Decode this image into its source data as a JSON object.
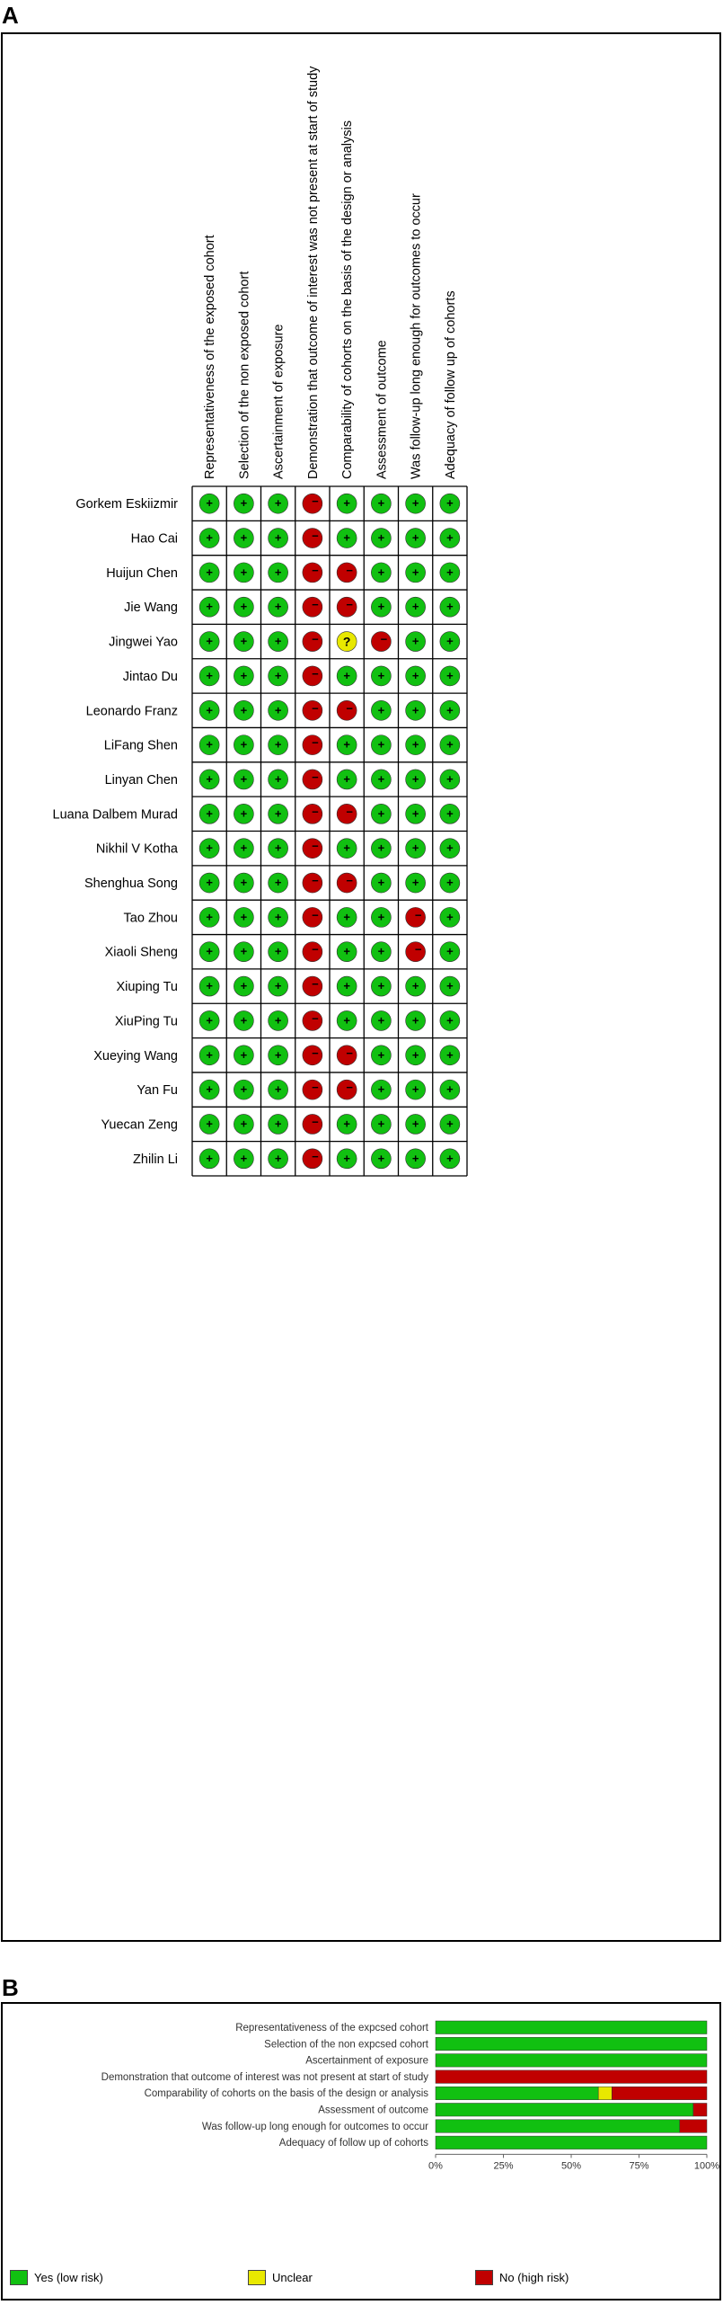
{
  "panel_a_label": "A",
  "panel_b_label": "B",
  "colors": {
    "yes": "#11c011",
    "no": "#c00000",
    "unclear": "#e8e800"
  },
  "symbols": {
    "yes": "+",
    "no": "−",
    "unclear": "?"
  },
  "chart_data": [
    {
      "type": "table",
      "columns": [
        "Representativeness of the exposed cohort",
        "Selection of the non exposed cohort",
        "Ascertainment of exposure",
        "Demonstration that outcome of interest was not present at start of study",
        "Comparability of cohorts on the basis of the design or analysis",
        "Assessment of outcome",
        "Was follow-up long enough for outcomes to occur",
        "Adequacy of follow up of cohorts"
      ],
      "rows": [
        {
          "study": "Gorkem Eskiizmir",
          "ratings": [
            "yes",
            "yes",
            "yes",
            "no",
            "yes",
            "yes",
            "yes",
            "yes"
          ]
        },
        {
          "study": "Hao Cai",
          "ratings": [
            "yes",
            "yes",
            "yes",
            "no",
            "yes",
            "yes",
            "yes",
            "yes"
          ]
        },
        {
          "study": "Huijun Chen",
          "ratings": [
            "yes",
            "yes",
            "yes",
            "no",
            "no",
            "yes",
            "yes",
            "yes"
          ]
        },
        {
          "study": "Jie Wang",
          "ratings": [
            "yes",
            "yes",
            "yes",
            "no",
            "no",
            "yes",
            "yes",
            "yes"
          ]
        },
        {
          "study": "Jingwei Yao",
          "ratings": [
            "yes",
            "yes",
            "yes",
            "no",
            "unclear",
            "no",
            "yes",
            "yes"
          ]
        },
        {
          "study": "Jintao Du",
          "ratings": [
            "yes",
            "yes",
            "yes",
            "no",
            "yes",
            "yes",
            "yes",
            "yes"
          ]
        },
        {
          "study": "Leonardo Franz",
          "ratings": [
            "yes",
            "yes",
            "yes",
            "no",
            "no",
            "yes",
            "yes",
            "yes"
          ]
        },
        {
          "study": "LiFang Shen",
          "ratings": [
            "yes",
            "yes",
            "yes",
            "no",
            "yes",
            "yes",
            "yes",
            "yes"
          ]
        },
        {
          "study": "Linyan Chen",
          "ratings": [
            "yes",
            "yes",
            "yes",
            "no",
            "yes",
            "yes",
            "yes",
            "yes"
          ]
        },
        {
          "study": "Luana Dalbem Murad",
          "ratings": [
            "yes",
            "yes",
            "yes",
            "no",
            "no",
            "yes",
            "yes",
            "yes"
          ]
        },
        {
          "study": "Nikhil V Kotha",
          "ratings": [
            "yes",
            "yes",
            "yes",
            "no",
            "yes",
            "yes",
            "yes",
            "yes"
          ]
        },
        {
          "study": "Shenghua Song",
          "ratings": [
            "yes",
            "yes",
            "yes",
            "no",
            "no",
            "yes",
            "yes",
            "yes"
          ]
        },
        {
          "study": "Tao Zhou",
          "ratings": [
            "yes",
            "yes",
            "yes",
            "no",
            "yes",
            "yes",
            "no",
            "yes"
          ]
        },
        {
          "study": "Xiaoli Sheng",
          "ratings": [
            "yes",
            "yes",
            "yes",
            "no",
            "yes",
            "yes",
            "no",
            "yes"
          ]
        },
        {
          "study": "Xiuping Tu",
          "ratings": [
            "yes",
            "yes",
            "yes",
            "no",
            "yes",
            "yes",
            "yes",
            "yes"
          ]
        },
        {
          "study": "XiuPing Tu",
          "ratings": [
            "yes",
            "yes",
            "yes",
            "no",
            "yes",
            "yes",
            "yes",
            "yes"
          ]
        },
        {
          "study": "Xueying Wang",
          "ratings": [
            "yes",
            "yes",
            "yes",
            "no",
            "no",
            "yes",
            "yes",
            "yes"
          ]
        },
        {
          "study": "Yan Fu",
          "ratings": [
            "yes",
            "yes",
            "yes",
            "no",
            "no",
            "yes",
            "yes",
            "yes"
          ]
        },
        {
          "study": "Yuecan Zeng",
          "ratings": [
            "yes",
            "yes",
            "yes",
            "no",
            "yes",
            "yes",
            "yes",
            "yes"
          ]
        },
        {
          "study": "Zhilin Li",
          "ratings": [
            "yes",
            "yes",
            "yes",
            "no",
            "yes",
            "yes",
            "yes",
            "yes"
          ]
        }
      ]
    },
    {
      "type": "bar",
      "orientation": "horizontal",
      "stacked": true,
      "categories": [
        "Representativeness of the expcsed cohort",
        "Selection of the non expcsed cohort",
        "Ascertainment of exposure",
        "Demonstration that outcome of interest was not present at start of study",
        "Comparability of cohorts on the basis of the design or analysis",
        "Assessment of outcome",
        "Was follow-up long enough for outcomes to occur",
        "Adequacy of follow up of cohorts"
      ],
      "series": [
        {
          "name": "Yes (low risk)",
          "color": "#11c011",
          "values": [
            100,
            100,
            100,
            0,
            60,
            95,
            90,
            100
          ]
        },
        {
          "name": "Unclear",
          "color": "#e8e800",
          "values": [
            0,
            0,
            0,
            0,
            5,
            0,
            0,
            0
          ]
        },
        {
          "name": "No (high risk)",
          "color": "#c00000",
          "values": [
            0,
            0,
            0,
            100,
            35,
            5,
            10,
            0
          ]
        }
      ],
      "xlim": [
        0,
        100
      ],
      "xticks": [
        "0%",
        "25%",
        "50%",
        "75%",
        "100%"
      ],
      "legend": "bottom"
    }
  ]
}
